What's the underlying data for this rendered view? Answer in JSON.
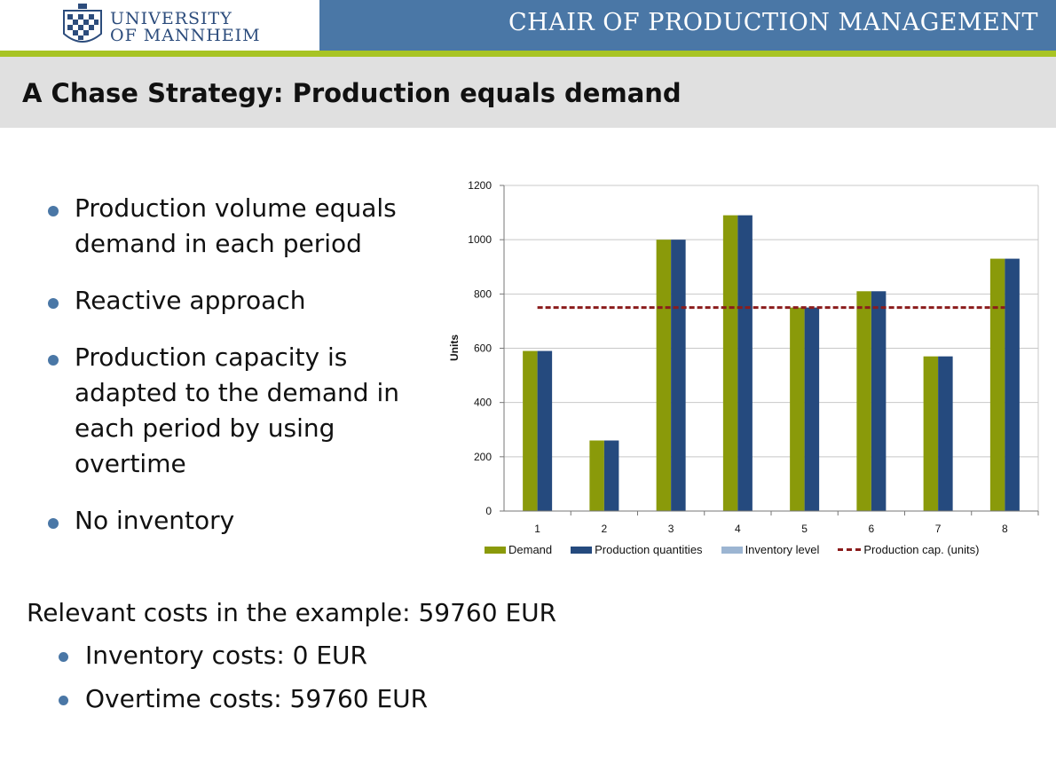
{
  "header": {
    "university_line1": "UNIVERSITY",
    "university_line2": "OF MANNHEIM",
    "chair": "CHAIR OF PRODUCTION MANAGEMENT"
  },
  "title": "A Chase Strategy: Production equals demand",
  "bullets": [
    "Production volume equals demand in each period",
    "Reactive approach",
    "Production capacity is adapted to the demand in each period by using overtime",
    "No inventory"
  ],
  "costs": {
    "heading": "Relevant costs in the example: 59760 EUR",
    "items": [
      "Inventory costs: 0 EUR",
      "Overtime costs: 59760 EUR"
    ]
  },
  "chart_data": {
    "type": "bar",
    "categories": [
      "1",
      "2",
      "3",
      "4",
      "5",
      "6",
      "7",
      "8"
    ],
    "series": [
      {
        "name": "Demand",
        "values": [
          590,
          260,
          1000,
          1090,
          750,
          810,
          570,
          930
        ],
        "color": "#8a9a0a"
      },
      {
        "name": "Production quantities",
        "values": [
          590,
          260,
          1000,
          1090,
          750,
          810,
          570,
          930
        ],
        "color": "#254a7e"
      },
      {
        "name": "Inventory level",
        "values": [
          0,
          0,
          0,
          0,
          0,
          0,
          0,
          0
        ],
        "color": "#9cb5d2"
      }
    ],
    "reference_line": {
      "name": "Production cap. (units)",
      "value": 750,
      "color": "#8b1c1c",
      "style": "dashed"
    },
    "ylabel": "Units",
    "xlabel": "",
    "ylim": [
      0,
      1200
    ],
    "yticks": [
      0,
      200,
      400,
      600,
      800,
      1000,
      1200
    ],
    "grid": true,
    "legend_position": "bottom"
  }
}
